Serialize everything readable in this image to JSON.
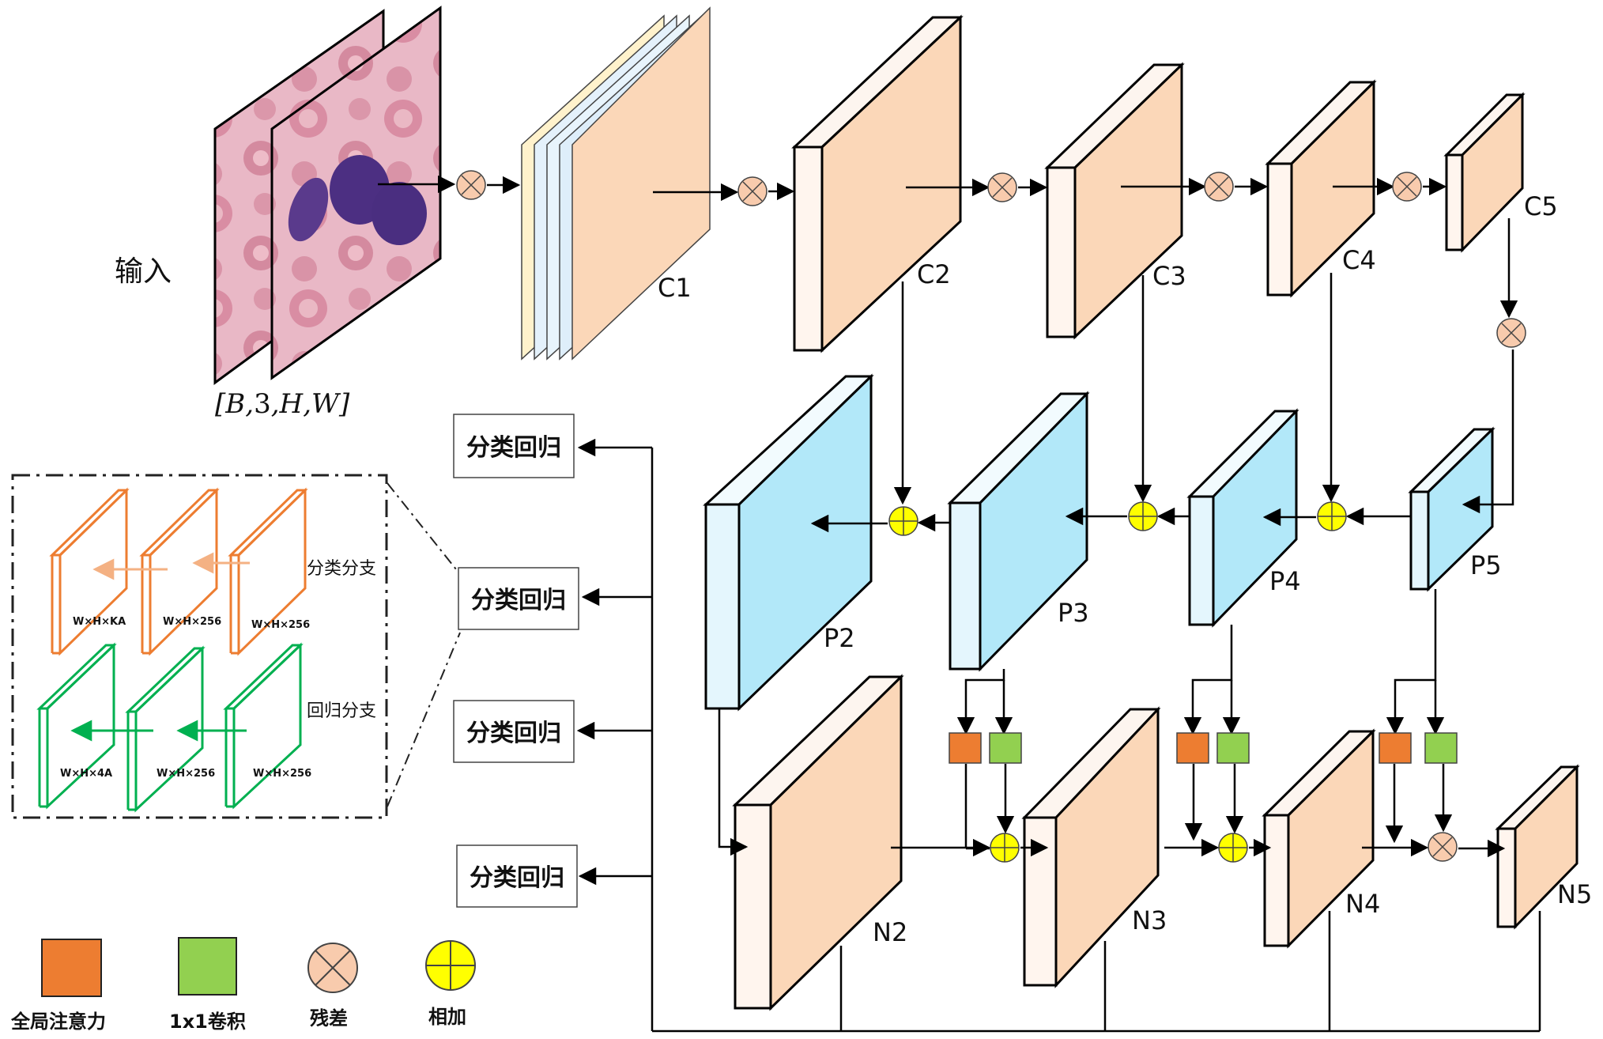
{
  "input": {
    "label": "输入",
    "shape": {
      "open": "[",
      "b": "B",
      "c": "3",
      "h": "H",
      "w": "W",
      "close": "]",
      "sep": ","
    }
  },
  "backbone": {
    "c1": "C1",
    "c2": "C2",
    "c3": "C3",
    "c4": "C4",
    "c5": "C5"
  },
  "fpn": {
    "p2": "P2",
    "p3": "P3",
    "p4": "P4",
    "p5": "P5"
  },
  "pan": {
    "n2": "N2",
    "n3": "N3",
    "n4": "N4",
    "n5": "N5"
  },
  "heads": {
    "head1": "分类回归",
    "head2": "分类回归",
    "head3": "分类回归",
    "head4": "分类回归"
  },
  "detail": {
    "cls_branch": "分类分支",
    "reg_branch": "回归分支",
    "cls_out": "W×H×KA",
    "cls_mid": "W×H×256",
    "cls_in": "W×H×256",
    "reg_out": "W×H×4A",
    "reg_mid": "W×H×256",
    "reg_in": "W×H×256"
  },
  "legend": {
    "attention": "全局注意力",
    "conv": "1x1卷积",
    "residual": "残差",
    "add": "相加"
  },
  "colors": {
    "orange_face": "#fbd7b8",
    "blue_face": "#b2e8f9",
    "blue_side": "#e4f6fd",
    "side_light": "#fff4ec",
    "attention": "#ed7d31",
    "conv": "#92d050",
    "residual": "#f8cbad",
    "add": "#ffff00",
    "detail_orange": "#ed7d31",
    "detail_green": "#00b050"
  }
}
